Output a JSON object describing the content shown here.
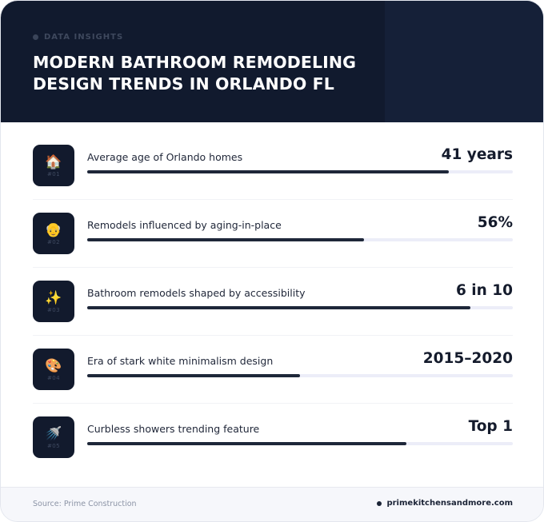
{
  "header": {
    "eyebrow": "DATA INSIGHTS",
    "title": "MODERN BATHROOM REMODELING DESIGN TRENDS IN ORLANDO FL"
  },
  "colors": {
    "header_bg": "#111a2e",
    "bar_fill": "#1e2739",
    "bar_track": "#ecedf8",
    "icon_tile": "#121a2d"
  },
  "stats": [
    {
      "icon": "house-icon",
      "emoji": "🏠",
      "code": "#01",
      "label": "Average age of Orlando homes",
      "value": "41 years",
      "progress": 0.85
    },
    {
      "icon": "older-person-icon",
      "emoji": "👴",
      "code": "#02",
      "label": "Remodels influenced by aging-in-place",
      "value": "56%",
      "progress": 0.65
    },
    {
      "icon": "sparkles-icon",
      "emoji": "✨",
      "code": "#03",
      "label": "Bathroom remodels shaped by accessibility",
      "value": "6 in 10",
      "progress": 0.9
    },
    {
      "icon": "palette-icon",
      "emoji": "🎨",
      "code": "#04",
      "label": "Era of stark white minimalism design",
      "value": "2015–2020",
      "progress": 0.5
    },
    {
      "icon": "shower-icon",
      "emoji": "🚿",
      "code": "#05",
      "label": "Curbless showers trending feature",
      "value": "Top 1",
      "progress": 0.75
    }
  ],
  "footer": {
    "source": "Source: Prime Construction",
    "site": "primekitchensandmore.com"
  }
}
